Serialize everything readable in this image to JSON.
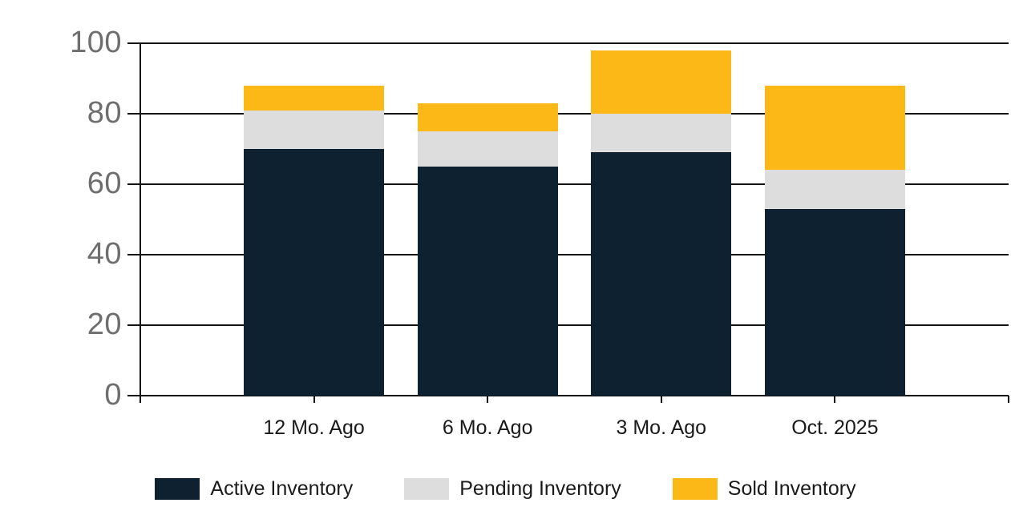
{
  "chart_data": {
    "type": "bar",
    "stacked": true,
    "categories": [
      "12 Mo. Ago",
      "6 Mo. Ago",
      "3 Mo. Ago",
      "Oct. 2025"
    ],
    "series": [
      {
        "name": "Active Inventory",
        "color": "#0d2130",
        "values": [
          70,
          65,
          69,
          53
        ]
      },
      {
        "name": "Pending Inventory",
        "color": "#dcdddc",
        "values": [
          11,
          10,
          11,
          11
        ]
      },
      {
        "name": "Sold Inventory",
        "color": "#fbb817",
        "values": [
          7,
          8,
          18,
          24
        ]
      }
    ],
    "stack_totals": [
      88,
      83,
      98,
      88
    ],
    "ylim": [
      0,
      100
    ],
    "yticks": [
      0,
      20,
      40,
      60,
      80,
      100
    ],
    "grid": true,
    "legend_position": "bottom",
    "colors": {
      "axis_line": "#141414",
      "y_tick_label": "#6e6e6e",
      "category_label": "#1a1a1a",
      "legend_text": "#1a1a1a",
      "background": "#ffffff"
    }
  }
}
